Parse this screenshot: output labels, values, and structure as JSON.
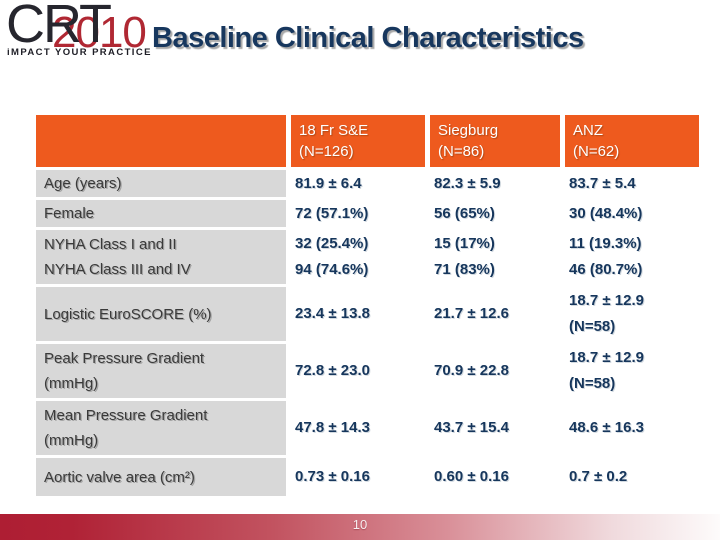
{
  "slide": {
    "title": "Baseline Clinical Characteristics"
  },
  "logo": {
    "brand": "CRT",
    "year": "2010",
    "tagline": "iMPACT YOUR PRACTICE"
  },
  "table": {
    "header": {
      "col1": {
        "line1": "18 Fr S&E",
        "line2": "(N=126)"
      },
      "col2": {
        "line1": "Siegburg",
        "line2": "(N=86)"
      },
      "col3": {
        "line1": "ANZ",
        "line2": "(N=62)"
      }
    },
    "rows": {
      "age": {
        "label": "Age (years)",
        "v1": "81.9 ± 6.4",
        "v2": "82.3 ± 5.9",
        "v3": "83.7 ± 5.4"
      },
      "female": {
        "label": "Female",
        "v1": "72 (57.1%)",
        "v2": "56 (65%)",
        "v3": "30 (48.4%)"
      },
      "nyha": {
        "label1": "NYHA Class I and II",
        "label2": "NYHA Class III and IV",
        "v1a": "32 (25.4%)",
        "v1b": "94 (74.6%)",
        "v2a": "15 (17%)",
        "v2b": "71 (83%)",
        "v3a": "11 (19.3%)",
        "v3b": "46 (80.7%)"
      },
      "euroscore": {
        "label": "Logistic EuroSCORE (%)",
        "v1": "23.4 ± 13.8",
        "v2": "21.7 ± 12.6",
        "v3a": "18.7 ± 12.9",
        "v3b": "(N=58)"
      },
      "peak": {
        "label1": "Peak Pressure Gradient",
        "label2": "(mmHg)",
        "v1": "72.8 ± 23.0",
        "v2": "70.9 ± 22.8",
        "v3a": "18.7 ± 12.9",
        "v3b": "(N=58)"
      },
      "mean": {
        "label1": "Mean Pressure Gradient",
        "label2": "(mmHg)",
        "v1": "47.8 ± 14.3",
        "v2": "43.7 ± 15.4",
        "v3": "48.6 ± 16.3"
      },
      "aortic": {
        "label": "Aortic valve area (cm²)",
        "v1": "0.73 ± 0.16",
        "v2": "0.60 ± 0.16",
        "v3": "0.7 ± 0.2"
      }
    }
  },
  "footer": {
    "page_number": "10"
  },
  "colors": {
    "header_orange": "#EE5A1E",
    "label_gray": "#D8D8D8",
    "data_navy": "#16365C",
    "title_navy": "#17375E",
    "footer_red_left": "#AE1E33",
    "logo_red": "#B02833",
    "logo_dark": "#26262E"
  }
}
